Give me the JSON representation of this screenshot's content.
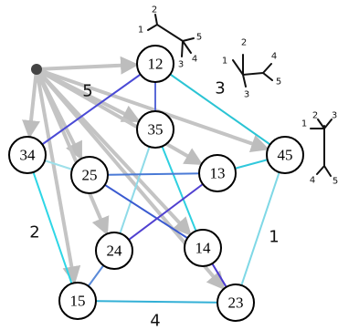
{
  "nodes": [
    {
      "label": "12"
    },
    {
      "label": "35"
    },
    {
      "label": "34"
    },
    {
      "label": "25"
    },
    {
      "label": "13"
    },
    {
      "label": "45"
    },
    {
      "label": "24"
    },
    {
      "label": "14"
    },
    {
      "label": "15"
    },
    {
      "label": "23"
    }
  ],
  "edge_labels": [
    "5",
    "3",
    "2",
    "1",
    "4"
  ],
  "trees": [
    {
      "labels": [
        "1",
        "2",
        "5",
        "3",
        "4"
      ]
    },
    {
      "labels": [
        "1",
        "2",
        "3",
        "4",
        "5"
      ]
    },
    {
      "labels": [
        "1",
        "2",
        "3",
        "4",
        "5"
      ]
    }
  ]
}
